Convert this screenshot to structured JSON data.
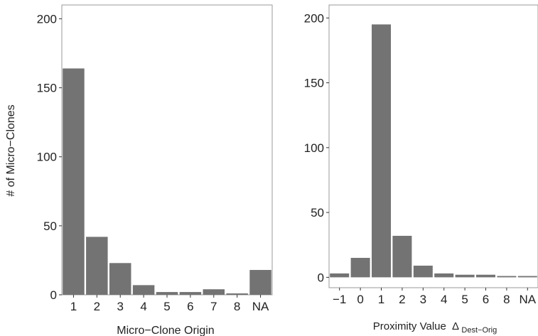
{
  "y_axis_label": "# of Micro−Clones",
  "bar_color": "#737373",
  "frame_color": "#9a9a9a",
  "chart_data": [
    {
      "type": "bar",
      "xlabel": "Micro−Clone Origin",
      "categories": [
        "1",
        "2",
        "3",
        "4",
        "5",
        "6",
        "7",
        "8",
        "NA"
      ],
      "values": [
        164,
        42,
        23,
        7,
        2,
        2,
        4,
        1,
        18
      ],
      "ylim": [
        0,
        210
      ],
      "yticks": [
        0,
        50,
        100,
        150,
        200
      ],
      "grid": false
    },
    {
      "type": "bar",
      "xlabel": "Proximity Value",
      "xlabel_symbol": "Δ",
      "xlabel_subscript": "Dest−Orig",
      "categories": [
        "−1",
        "0",
        "1",
        "2",
        "3",
        "4",
        "5",
        "6",
        "8",
        "NA"
      ],
      "values": [
        3,
        15,
        195,
        32,
        9,
        3,
        2,
        2,
        1,
        1
      ],
      "ylim": [
        -8,
        210
      ],
      "yticks": [
        0,
        50,
        100,
        150,
        200
      ],
      "grid": false
    }
  ]
}
